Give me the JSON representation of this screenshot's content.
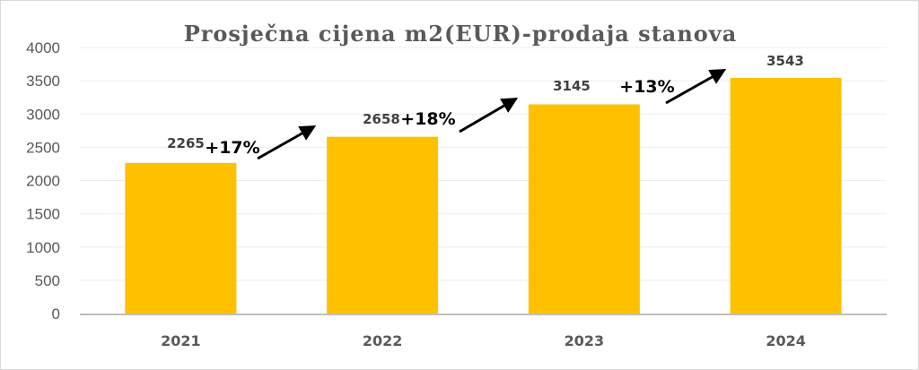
{
  "chart_data": {
    "type": "bar",
    "title": "Prosječna cijena m2(EUR)-prodaja stanova",
    "categories": [
      "2021",
      "2022",
      "2023",
      "2024"
    ],
    "values": [
      2265,
      2658,
      3145,
      3543
    ],
    "data_labels": [
      "2265",
      "2658",
      "3145",
      "3543"
    ],
    "ylim": [
      0,
      4000
    ],
    "yticks": [
      "0",
      "500",
      "1000",
      "1500",
      "2000",
      "2500",
      "3000",
      "3500",
      "4000"
    ],
    "grid": true,
    "bar_color": "#FFC000",
    "annotations": [
      {
        "text": "+17%",
        "from": "2021",
        "to": "2022"
      },
      {
        "text": "+18%",
        "from": "2022",
        "to": "2023"
      },
      {
        "text": "+13%",
        "from": "2023",
        "to": "2024"
      }
    ]
  }
}
